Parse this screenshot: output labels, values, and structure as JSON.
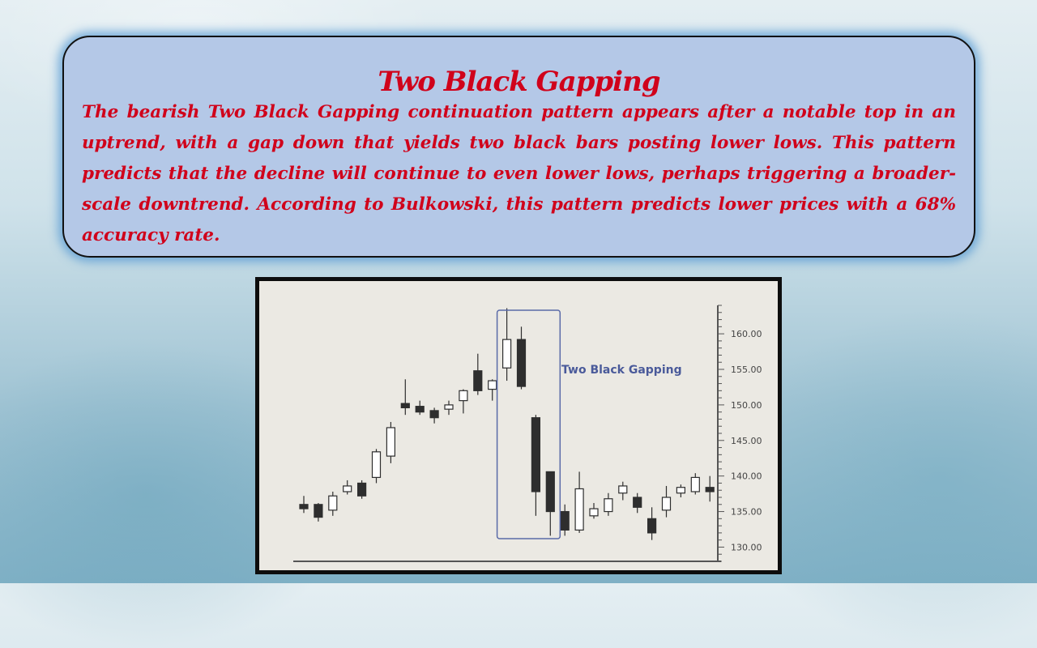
{
  "slide": {
    "title": "Two Black Gapping",
    "description": "The bearish Two Black Gapping continuation pattern appears after a notable top in an uptrend, with a gap down that yields two black bars posting lower lows. This pattern predicts that the decline will continue to even lower lows, perhaps triggering a broader-scale downtrend. According to Bulkowski, this pattern predicts lower prices with a 68% accuracy rate."
  },
  "colors": {
    "text": "#d0021b",
    "box_fill": "#b4c8e7",
    "pattern_box": "#5a6aa8",
    "candle_dark": "#2e2e2e"
  },
  "chart_data": {
    "type": "candlestick",
    "annotation": "Two Black Gapping",
    "ylim": [
      128,
      164
    ],
    "y_ticks": [
      "160.00",
      "155.00",
      "150.00",
      "145.00",
      "140.00",
      "135.00",
      "130.00"
    ],
    "y_axis_side": "right",
    "grid": false,
    "candles": [
      {
        "o": 136.0,
        "h": 137.2,
        "l": 134.8,
        "c": 135.4
      },
      {
        "o": 136.0,
        "h": 136.2,
        "l": 133.6,
        "c": 134.2
      },
      {
        "o": 135.2,
        "h": 137.8,
        "l": 134.4,
        "c": 137.2
      },
      {
        "o": 137.8,
        "h": 139.4,
        "l": 137.4,
        "c": 138.6
      },
      {
        "o": 139.0,
        "h": 139.4,
        "l": 136.8,
        "c": 137.2
      },
      {
        "o": 139.8,
        "h": 143.8,
        "l": 139.0,
        "c": 143.4
      },
      {
        "o": 142.8,
        "h": 147.6,
        "l": 141.8,
        "c": 146.8
      },
      {
        "o": 150.2,
        "h": 153.6,
        "l": 148.6,
        "c": 149.6
      },
      {
        "o": 149.8,
        "h": 150.6,
        "l": 148.6,
        "c": 149.0
      },
      {
        "o": 149.2,
        "h": 149.6,
        "l": 147.4,
        "c": 148.2
      },
      {
        "o": 149.4,
        "h": 150.6,
        "l": 148.6,
        "c": 150.0
      },
      {
        "o": 150.6,
        "h": 152.2,
        "l": 148.8,
        "c": 152.0
      },
      {
        "o": 154.8,
        "h": 157.2,
        "l": 151.4,
        "c": 152.0
      },
      {
        "o": 152.2,
        "h": 153.6,
        "l": 150.6,
        "c": 153.4
      },
      {
        "o": 155.2,
        "h": 163.6,
        "l": 153.4,
        "c": 159.2
      },
      {
        "o": 159.2,
        "h": 161.0,
        "l": 152.2,
        "c": 152.6
      },
      {
        "o": 148.2,
        "h": 148.6,
        "l": 134.4,
        "c": 137.8
      },
      {
        "o": 140.6,
        "h": 140.6,
        "l": 131.6,
        "c": 135.0
      },
      {
        "o": 135.0,
        "h": 136.0,
        "l": 131.6,
        "c": 132.4
      },
      {
        "o": 132.4,
        "h": 140.6,
        "l": 132.0,
        "c": 138.2
      },
      {
        "o": 134.4,
        "h": 136.2,
        "l": 134.0,
        "c": 135.4
      },
      {
        "o": 135.0,
        "h": 137.6,
        "l": 134.4,
        "c": 136.8
      },
      {
        "o": 137.6,
        "h": 139.2,
        "l": 136.6,
        "c": 138.6
      },
      {
        "o": 137.0,
        "h": 137.6,
        "l": 134.8,
        "c": 135.6
      },
      {
        "o": 134.0,
        "h": 135.6,
        "l": 131.0,
        "c": 132.0
      },
      {
        "o": 135.2,
        "h": 138.6,
        "l": 134.2,
        "c": 137.0
      },
      {
        "o": 137.6,
        "h": 138.8,
        "l": 137.0,
        "c": 138.4
      },
      {
        "o": 137.8,
        "h": 140.4,
        "l": 137.4,
        "c": 139.8
      },
      {
        "o": 138.4,
        "h": 140.0,
        "l": 136.4,
        "c": 137.8
      }
    ],
    "pattern_range": [
      14,
      17
    ]
  }
}
